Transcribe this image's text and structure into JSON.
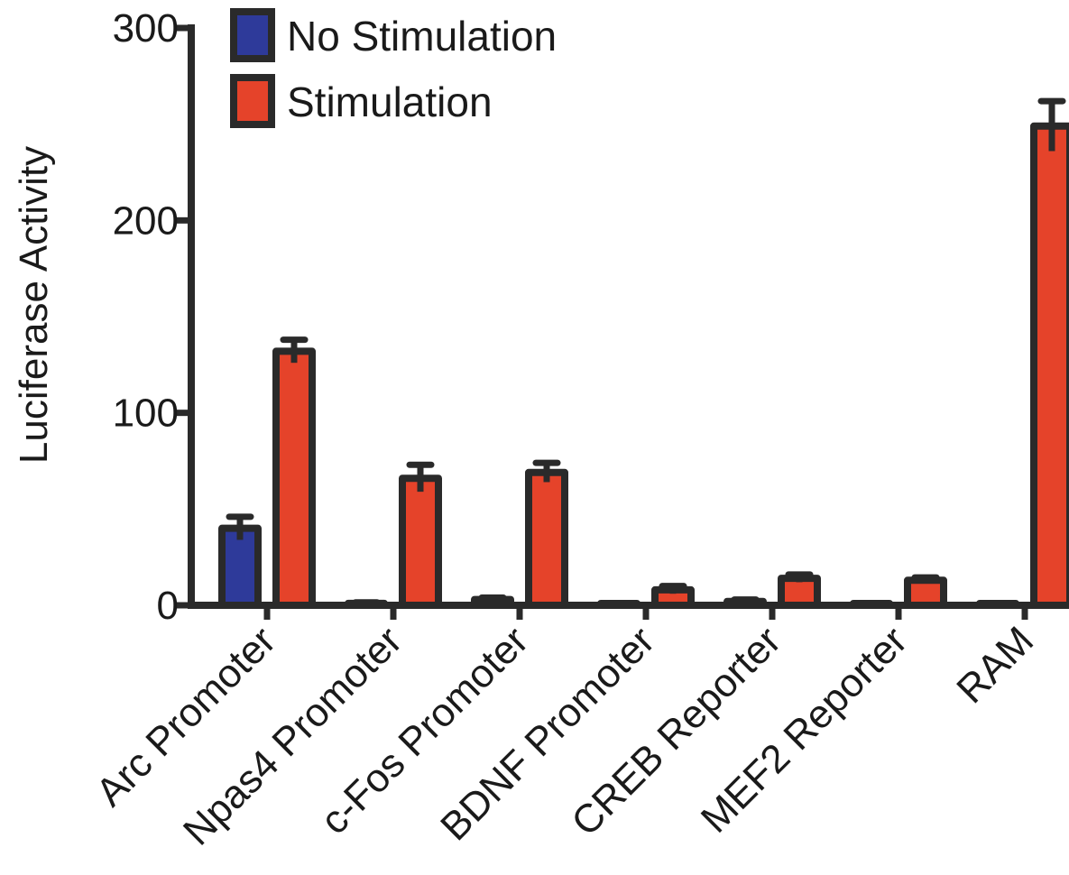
{
  "chart_data": {
    "type": "bar",
    "title": "",
    "xlabel": "",
    "ylabel": "Luciferase Activity",
    "ylim": [
      0,
      300
    ],
    "yticks": [
      0,
      100,
      200,
      300
    ],
    "grid": false,
    "legend_position": "top-left",
    "categories": [
      "Arc Promoter",
      "Npas4 Promoter",
      "c-Fos Promoter",
      "BDNF Promoter",
      "CREB Reporter",
      "MEF2 Reporter",
      "RAM"
    ],
    "series": [
      {
        "name": "No Stimulation",
        "color": "#2e3a9a",
        "values": [
          40,
          1,
          3,
          0,
          2,
          0,
          0.5
        ],
        "errors": [
          6,
          0.5,
          1,
          0,
          1,
          0,
          0.3
        ]
      },
      {
        "name": "Stimulation",
        "color": "#e5432a",
        "values": [
          132,
          66,
          69,
          8,
          14,
          13,
          249
        ],
        "errors": [
          6,
          7,
          5,
          2,
          2,
          1.5,
          13
        ]
      }
    ]
  }
}
